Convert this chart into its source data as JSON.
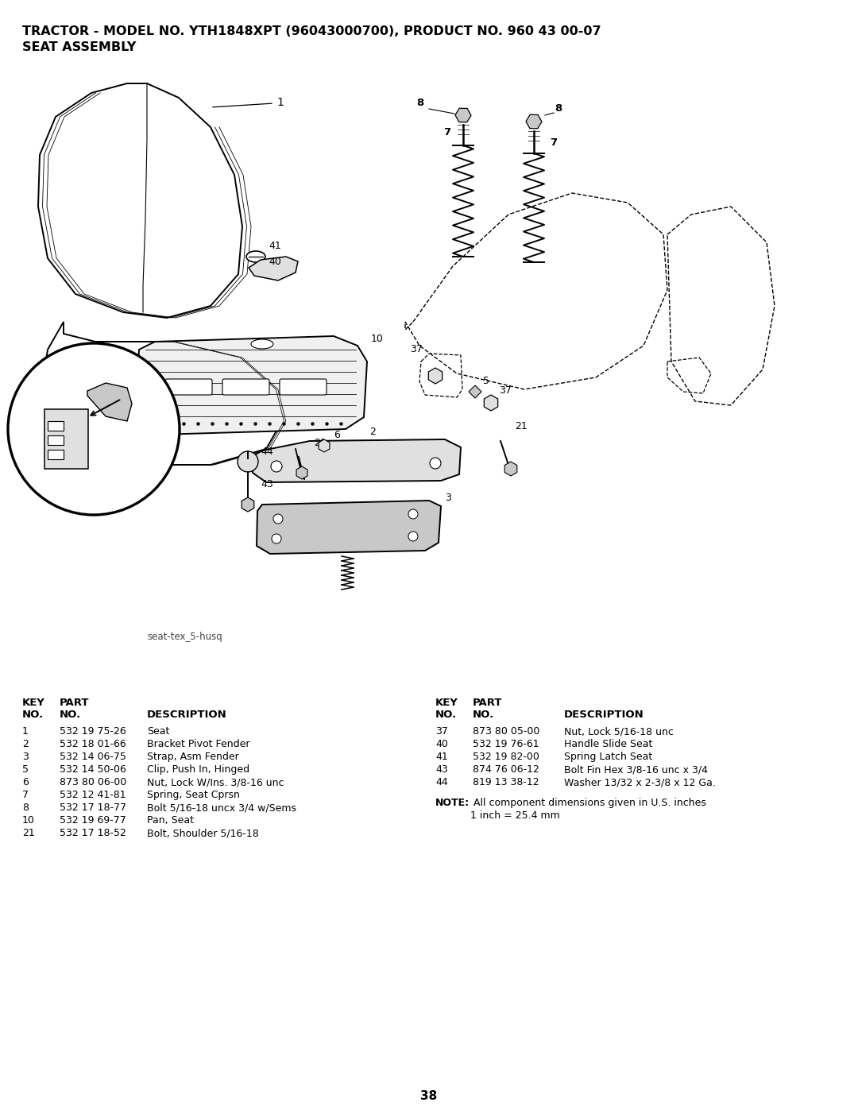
{
  "title_line1": "TRACTOR - MODEL NO. YTH1848XPT (96043000700), PRODUCT NO. 960 43 00-07",
  "title_line2": "SEAT ASSEMBLY",
  "image_label": "seat-tex_5-husq",
  "page_number": "38",
  "parts_left": [
    [
      "1",
      "532 19 75-26",
      "Seat"
    ],
    [
      "2",
      "532 18 01-66",
      "Bracket Pivot Fender"
    ],
    [
      "3",
      "532 14 06-75",
      "Strap, Asm Fender"
    ],
    [
      "5",
      "532 14 50-06",
      "Clip, Push In, Hinged"
    ],
    [
      "6",
      "873 80 06-00",
      "Nut, Lock W/Ins. 3/8-16 unc"
    ],
    [
      "7",
      "532 12 41-81",
      "Spring, Seat Cprsn"
    ],
    [
      "8",
      "532 17 18-77",
      "Bolt 5/16-18 uncx 3/4 w/Sems"
    ],
    [
      "10",
      "532 19 69-77",
      "Pan, Seat"
    ],
    [
      "21",
      "532 17 18-52",
      "Bolt, Shoulder 5/16-18"
    ]
  ],
  "parts_right": [
    [
      "37",
      "873 80 05-00",
      "Nut, Lock 5/16-18 unc"
    ],
    [
      "40",
      "532 19 76-61",
      "Handle Slide Seat"
    ],
    [
      "41",
      "532 19 82-00",
      "Spring Latch Seat"
    ],
    [
      "43",
      "874 76 06-12",
      "Bolt Fin Hex 3/8-16 unc x 3/4"
    ],
    [
      "44",
      "819 13 38-12",
      "Washer 13/32 x 2-3/8 x 12 Ga."
    ]
  ],
  "background_color": "#ffffff"
}
